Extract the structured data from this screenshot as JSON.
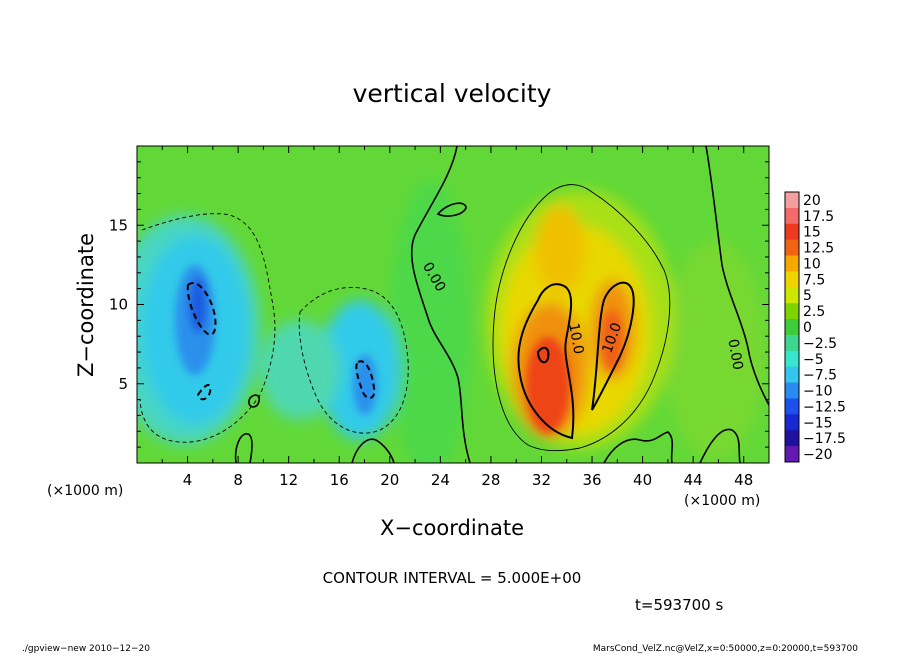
{
  "chart_data": {
    "type": "heatmap",
    "title": "vertical velocity",
    "xlabel": "X−coordinate",
    "ylabel": "Z−coordinate",
    "x_unit": "(×1000 m)",
    "z_unit": "(×1000 m)",
    "xlim": [
      0,
      50
    ],
    "ylim": [
      0,
      20
    ],
    "x_ticks": [
      "4",
      "8",
      "12",
      "16",
      "20",
      "24",
      "28",
      "32",
      "36",
      "40",
      "44",
      "48"
    ],
    "x_tick_values": [
      4,
      8,
      12,
      16,
      20,
      24,
      28,
      32,
      36,
      40,
      44,
      48
    ],
    "y_ticks": [
      "5",
      "10",
      "15"
    ],
    "y_tick_values": [
      5,
      10,
      15
    ],
    "colorbar": {
      "labels": [
        "20",
        "17.5",
        "15",
        "12.5",
        "10",
        "7.5",
        "5",
        "2.5",
        "0",
        "−2.5",
        "−5",
        "−7.5",
        "−10",
        "−12.5",
        "−15",
        "−17.5",
        "−20"
      ],
      "colors": [
        "#f5a0a0",
        "#f46a6a",
        "#ee3a20",
        "#f06414",
        "#f5a800",
        "#f0d400",
        "#cce800",
        "#7ed400",
        "#3ecd3a",
        "#3ed690",
        "#38e6d0",
        "#34c6ee",
        "#2a8cf0",
        "#1e50f0",
        "#1828d0",
        "#2010a0",
        "#6018b0"
      ]
    },
    "contour_labels": [
      {
        "text": "0.00",
        "x": 23.2,
        "y": 11.6,
        "angle": 60
      },
      {
        "text": "10.0",
        "x": 34.4,
        "y": 7.8,
        "angle": 80
      },
      {
        "text": "10.0",
        "x": 37.9,
        "y": 7.8,
        "angle": -70
      },
      {
        "text": "0.00",
        "x": 47.0,
        "y": 6.8,
        "angle": 80
      }
    ],
    "features": [
      {
        "kind": "updraft",
        "x": 33.2,
        "y": 7.0,
        "peak": 15
      },
      {
        "kind": "updraft",
        "x": 37.6,
        "y": 8.5,
        "peak": 12.5
      },
      {
        "kind": "downdraft",
        "x": 5.2,
        "y": 8.8,
        "peak": -12.5
      },
      {
        "kind": "downdraft",
        "x": 18.0,
        "y": 5.0,
        "peak": -12.5
      }
    ]
  },
  "contour_interval": "CONTOUR INTERVAL = 5.000E+00",
  "time_label": "t=593700 s",
  "footer_left": "./gpview−new  2010−12−20",
  "footer_right": "MarsCond_VelZ.nc@VelZ,x=0:50000,z=0:20000,t=593700"
}
